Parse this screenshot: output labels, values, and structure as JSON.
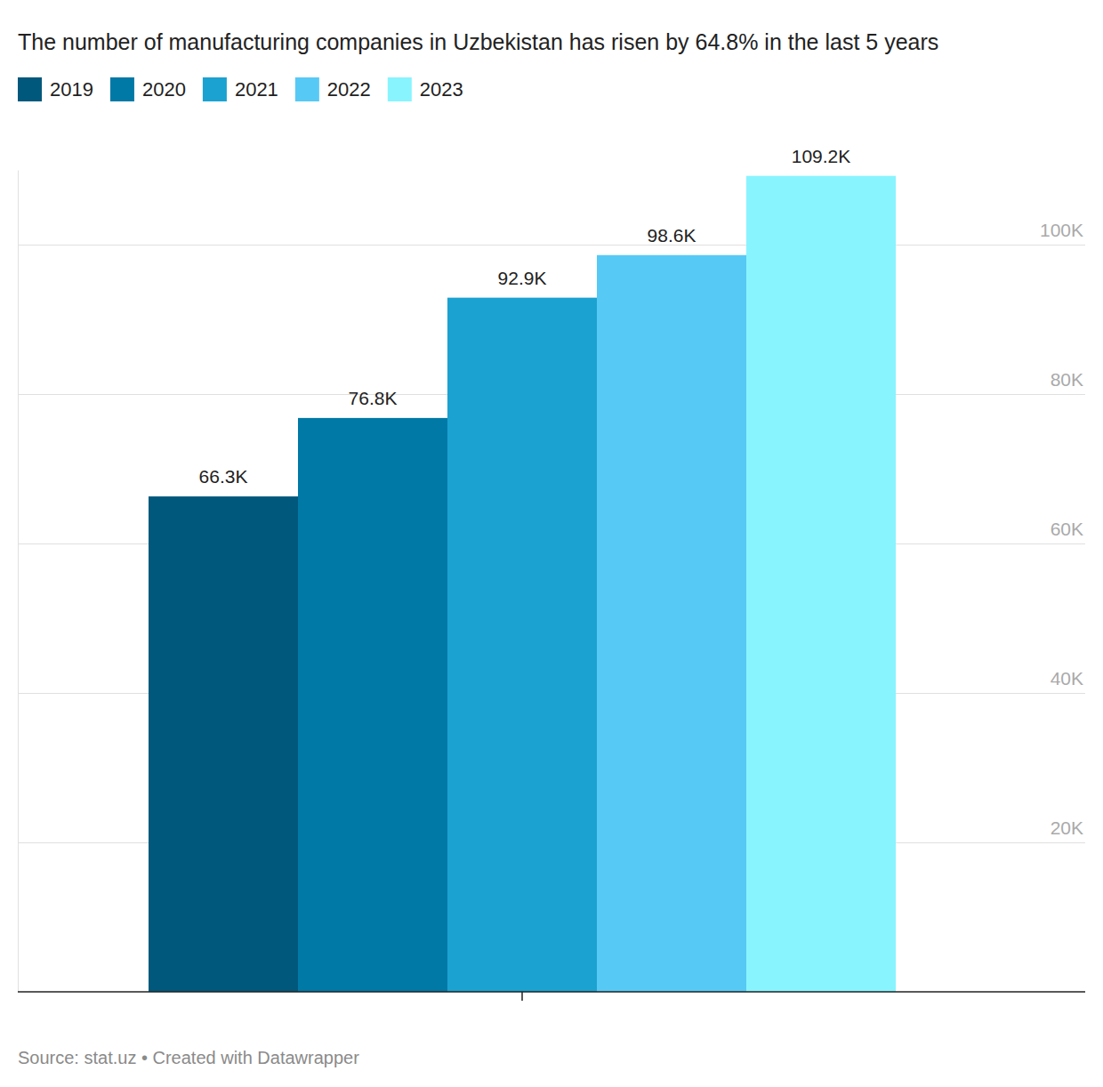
{
  "chart_data": {
    "type": "bar",
    "title": "The number of manufacturing companies in Uzbekistan has risen by 64.8% in the last 5 years",
    "source": "Source: stat.uz • Created with Datawrapper",
    "categories": [
      null
    ],
    "series": [
      {
        "name": "2019",
        "color": "#00587c",
        "values": [
          66300
        ],
        "value_labels": [
          "66.3K"
        ]
      },
      {
        "name": "2020",
        "color": "#0079a6",
        "values": [
          76800
        ],
        "value_labels": [
          "76.8K"
        ]
      },
      {
        "name": "2021",
        "color": "#1ba2d0",
        "values": [
          92900
        ],
        "value_labels": [
          "92.9K"
        ]
      },
      {
        "name": "2022",
        "color": "#57c9f5",
        "values": [
          98600
        ],
        "value_labels": [
          "98.6K"
        ]
      },
      {
        "name": "2023",
        "color": "#88f4fe",
        "values": [
          109200
        ],
        "value_labels": [
          "109.2K"
        ]
      }
    ],
    "ylim": [
      0,
      110000
    ],
    "yticks": [
      {
        "value": 20000,
        "label": "20K"
      },
      {
        "value": 40000,
        "label": "40K"
      },
      {
        "value": 60000,
        "label": "60K"
      },
      {
        "value": 80000,
        "label": "80K"
      },
      {
        "value": 100000,
        "label": "100K"
      }
    ],
    "grid": true,
    "legend": "top-left",
    "data_labels": true
  }
}
